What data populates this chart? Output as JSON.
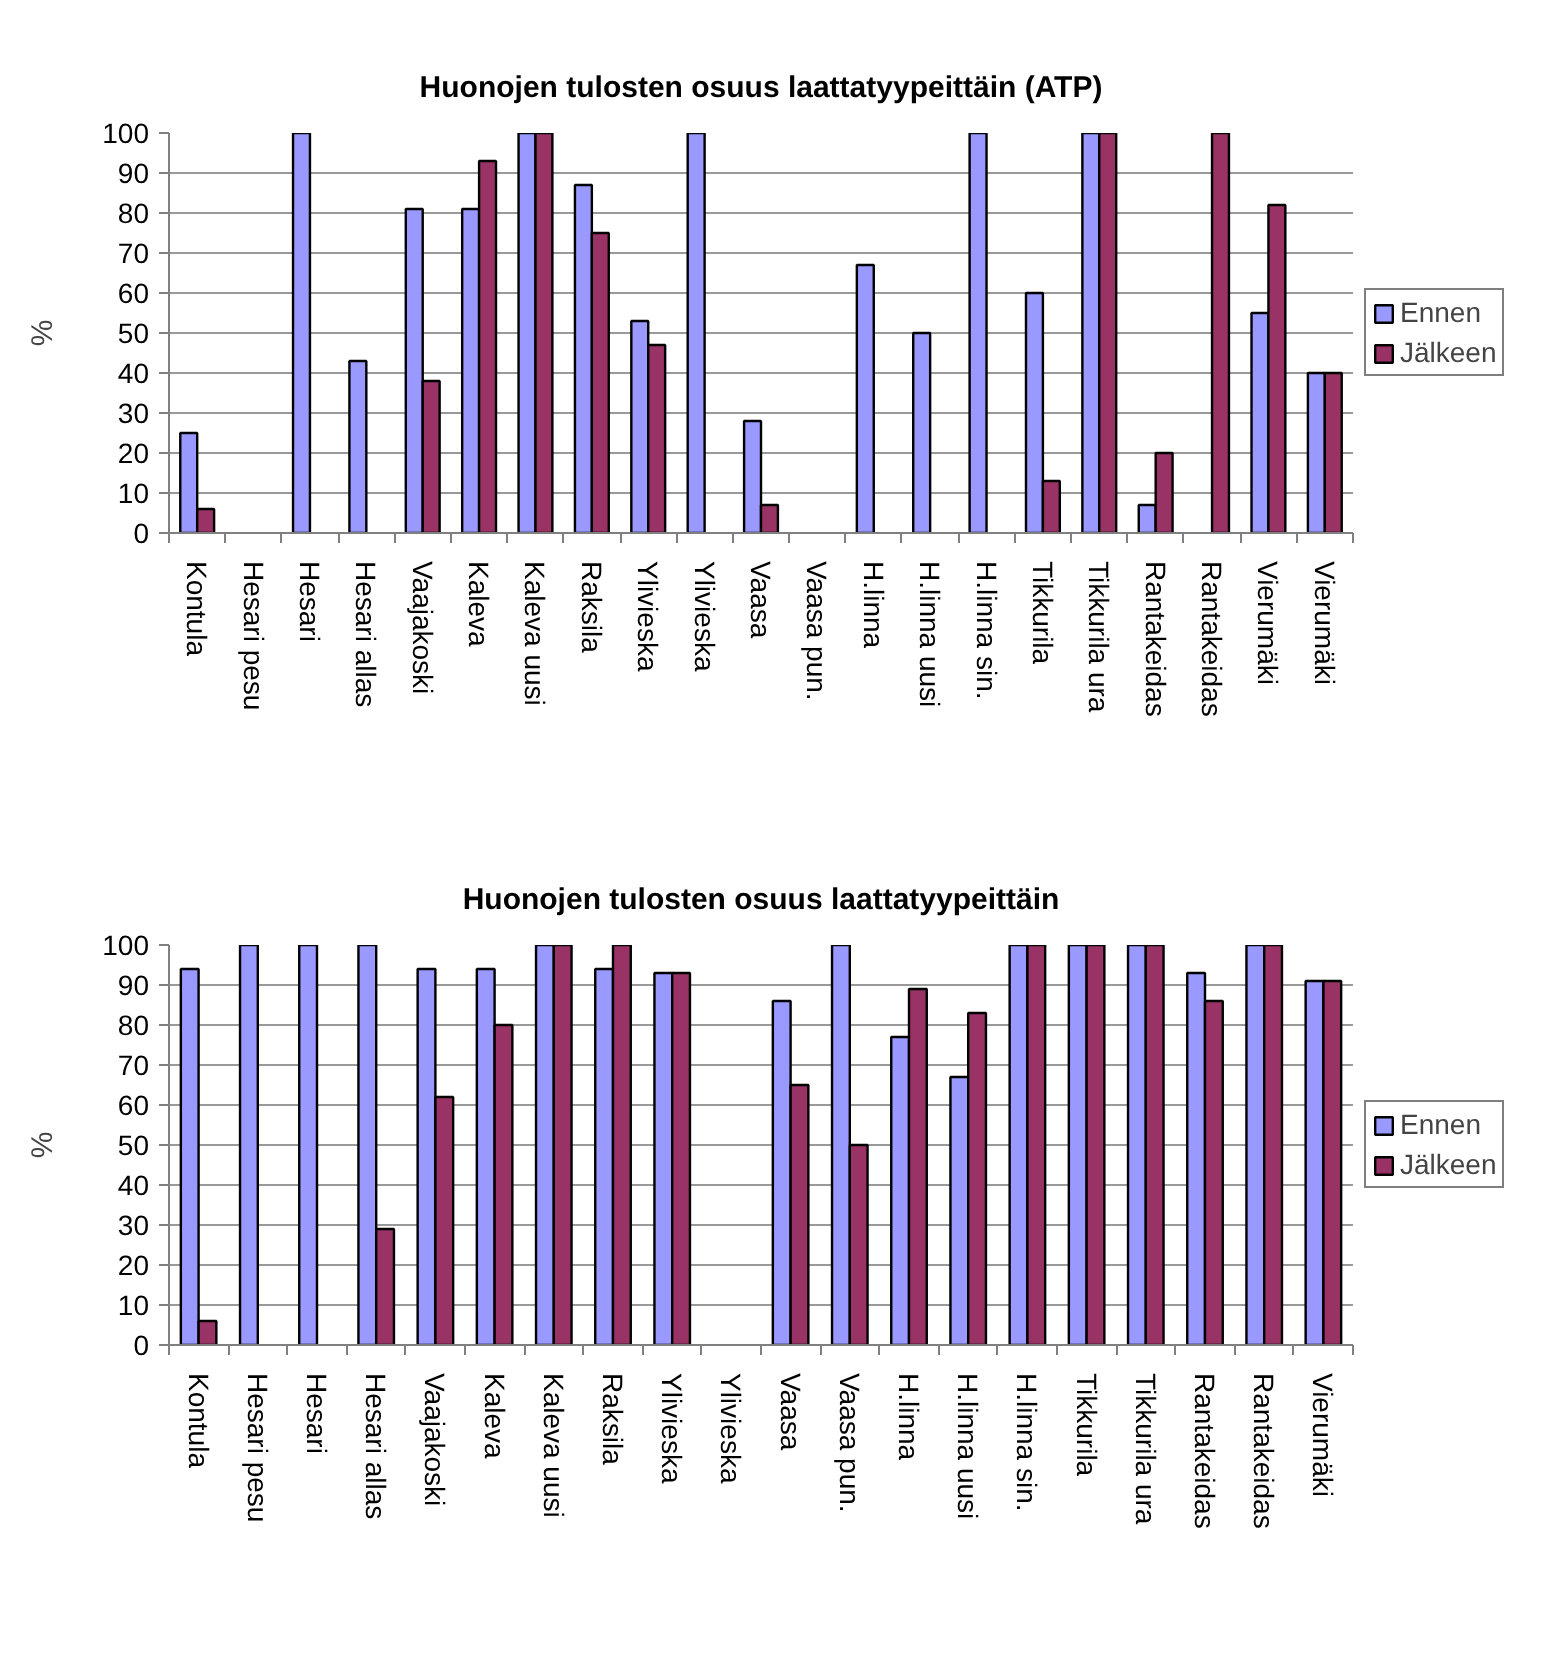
{
  "chart_data": [
    {
      "type": "bar",
      "title": "Huonojen tulosten osuus laattatyypeittäin (ATP)",
      "ylabel": "%",
      "categories": [
        "Kontula",
        "Hesari pesu",
        "Hesari",
        "Hesari allas",
        "Vaajakoski",
        "Kaleva",
        "Kaleva uusi",
        "Raksila",
        "Ylivieska",
        "Ylivieska",
        "Vaasa",
        "Vaasa pun.",
        "H.linna",
        "H.linna uusi",
        "H.linna sin.",
        "Tikkurila",
        "Tikkurila ura",
        "Rantakeidas",
        "Rantakeidas",
        "Vierumäki",
        "Vierumäki"
      ],
      "series": [
        {
          "name": "Ennen",
          "color": "#9999ff",
          "values": [
            25,
            null,
            100,
            43,
            81,
            81,
            100,
            87,
            53,
            100,
            28,
            null,
            67,
            50,
            100,
            60,
            100,
            7,
            null,
            55,
            40
          ]
        },
        {
          "name": "Jälkeen",
          "color": "#993366",
          "values": [
            6,
            null,
            null,
            null,
            38,
            93,
            100,
            75,
            47,
            null,
            7,
            null,
            null,
            null,
            null,
            13,
            100,
            20,
            100,
            82,
            40
          ]
        }
      ],
      "ylim": [
        0,
        100
      ],
      "yticks": [
        0,
        10,
        20,
        30,
        40,
        50,
        60,
        70,
        80,
        90,
        100
      ],
      "grid": "y",
      "legend": "right"
    },
    {
      "type": "bar",
      "title": "Huonojen tulosten osuus laattatyypeittäin",
      "ylabel": "%",
      "categories": [
        "Kontula",
        "Hesari pesu",
        "Hesari",
        "Hesari allas",
        "Vaajakoski",
        "Kaleva",
        "Kaleva uusi",
        "Raksila",
        "Ylivieska",
        "Ylivieska",
        "Vaasa",
        "Vaasa pun.",
        "H.linna",
        "H.linna uusi",
        "H.linna sin.",
        "Tikkurila",
        "Tikkurila ura",
        "Rantakeidas",
        "Rantakeidas",
        "Vierumäki"
      ],
      "series": [
        {
          "name": "Ennen",
          "color": "#9999ff",
          "values": [
            94,
            100,
            100,
            100,
            94,
            94,
            100,
            94,
            93,
            null,
            86,
            100,
            77,
            67,
            100,
            100,
            100,
            93,
            100,
            91
          ]
        },
        {
          "name": "Jälkeen",
          "color": "#993366",
          "values": [
            6,
            null,
            null,
            29,
            62,
            80,
            100,
            100,
            93,
            null,
            65,
            50,
            89,
            83,
            100,
            100,
            100,
            86,
            100,
            91
          ]
        }
      ],
      "ylim": [
        0,
        100
      ],
      "yticks": [
        0,
        10,
        20,
        30,
        40,
        50,
        60,
        70,
        80,
        90,
        100
      ],
      "grid": "y",
      "legend": "right"
    }
  ]
}
